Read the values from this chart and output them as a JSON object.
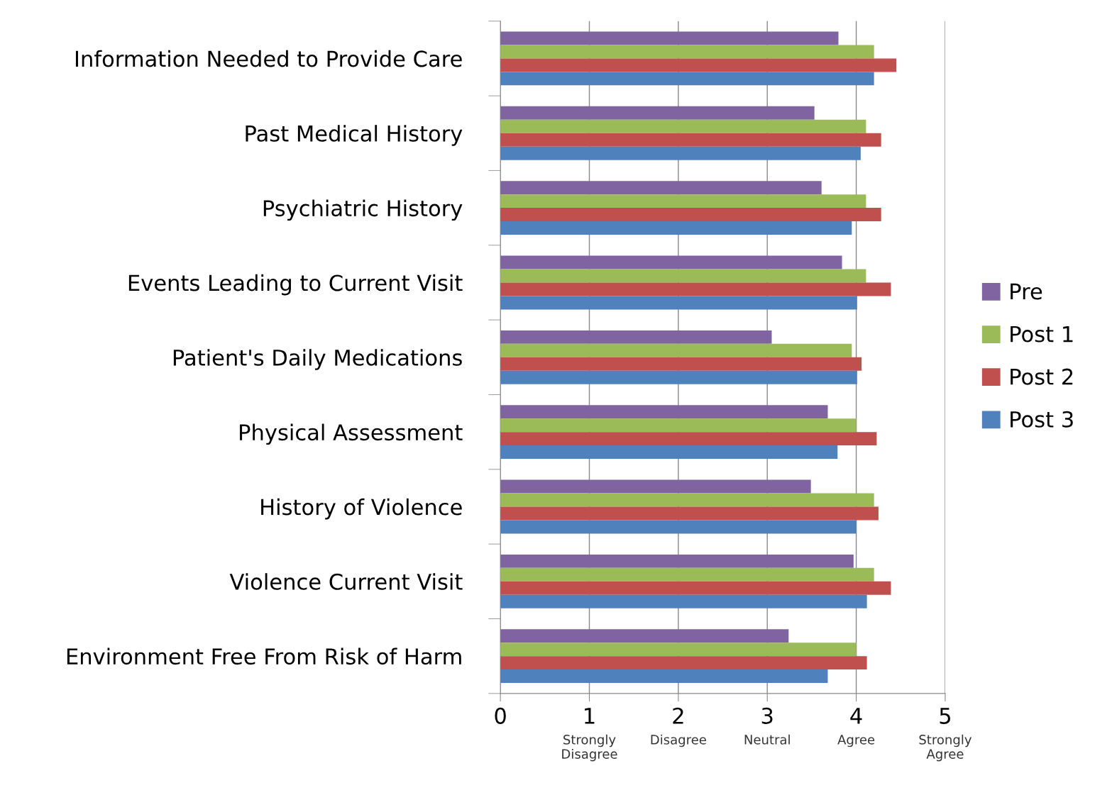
{
  "chart_data": {
    "type": "bar",
    "orientation": "horizontal",
    "categories": [
      "Information Needed to Provide Care",
      "Past Medical History",
      "Psychiatric History",
      "Events Leading to Current Visit",
      "Patient's Daily Medications",
      "Physical Assessment",
      "History of Violence",
      "Violence Current Visit",
      "Environment Free From Risk of Harm"
    ],
    "series": [
      {
        "name": "Pre",
        "color": "#8064a2",
        "values": [
          3.8,
          3.53,
          3.61,
          3.84,
          3.05,
          3.68,
          3.49,
          3.97,
          3.24
        ]
      },
      {
        "name": "Post 1",
        "color": "#9bbb59",
        "values": [
          4.2,
          4.11,
          4.11,
          4.11,
          3.95,
          4.0,
          4.2,
          4.2,
          4.0
        ]
      },
      {
        "name": "Post 2",
        "color": "#c0504d",
        "values": [
          4.45,
          4.28,
          4.28,
          4.39,
          4.06,
          4.23,
          4.25,
          4.39,
          4.12
        ]
      },
      {
        "name": "Post 3",
        "color": "#4f81bd",
        "values": [
          4.2,
          4.05,
          3.95,
          4.01,
          4.01,
          3.79,
          4.0,
          4.12,
          3.68
        ]
      }
    ],
    "xlim": [
      0,
      5
    ],
    "xticks": [
      0,
      1,
      2,
      3,
      4,
      5
    ],
    "annotations": [
      "Strongly\nDisagree",
      "Disagree",
      "Neutral",
      "Agree",
      "Strongly\nAgree"
    ],
    "grid": "x",
    "legend": "right"
  }
}
